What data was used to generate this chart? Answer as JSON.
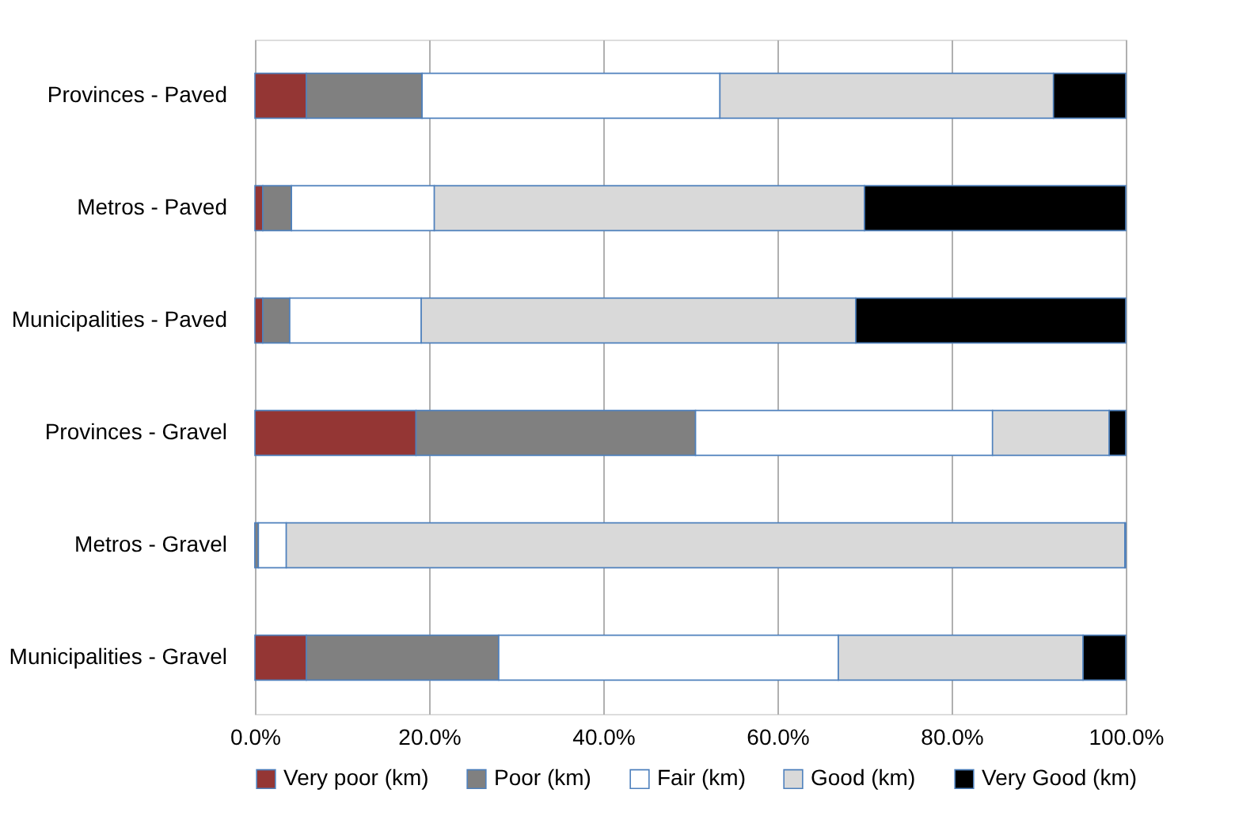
{
  "chart_data": {
    "type": "bar",
    "orientation": "horizontal",
    "stacked": true,
    "categories": [
      "Provinces - Paved",
      "Metros - Paved",
      "Municipalities - Paved",
      "Provinces - Gravel",
      "Metros - Gravel",
      "Municipalities - Gravel"
    ],
    "series": [
      {
        "name": "Very poor (km)",
        "color": "#943634",
        "values": [
          5.9,
          0.9,
          0.9,
          18.5,
          0,
          5.9
        ]
      },
      {
        "name": "Poor (km)",
        "color": "#808080",
        "values": [
          13.3,
          3.3,
          3.1,
          32.1,
          0.4,
          22.1
        ]
      },
      {
        "name": "Fair (km)",
        "color": "#ffffff",
        "values": [
          34.2,
          16.4,
          15.1,
          34.1,
          3.2,
          39.0
        ]
      },
      {
        "name": "Good (km)",
        "color": "#d9d9d9",
        "values": [
          38.3,
          49.4,
          49.9,
          13.4,
          96.3,
          28.1
        ]
      },
      {
        "name": "Very Good (km)",
        "color": "#000000",
        "values": [
          8.3,
          30.0,
          31.0,
          1.9,
          0.1,
          4.9
        ]
      }
    ],
    "xlim": [
      0,
      100
    ],
    "xticks": [
      {
        "value": 0,
        "label": "0.0%"
      },
      {
        "value": 20,
        "label": "20.0%"
      },
      {
        "value": 40,
        "label": "40.0%"
      },
      {
        "value": 60,
        "label": "60.0%"
      },
      {
        "value": 80,
        "label": "80.0%"
      },
      {
        "value": 100,
        "label": "100.0%"
      }
    ],
    "grid": "x",
    "legend": "bottom"
  }
}
